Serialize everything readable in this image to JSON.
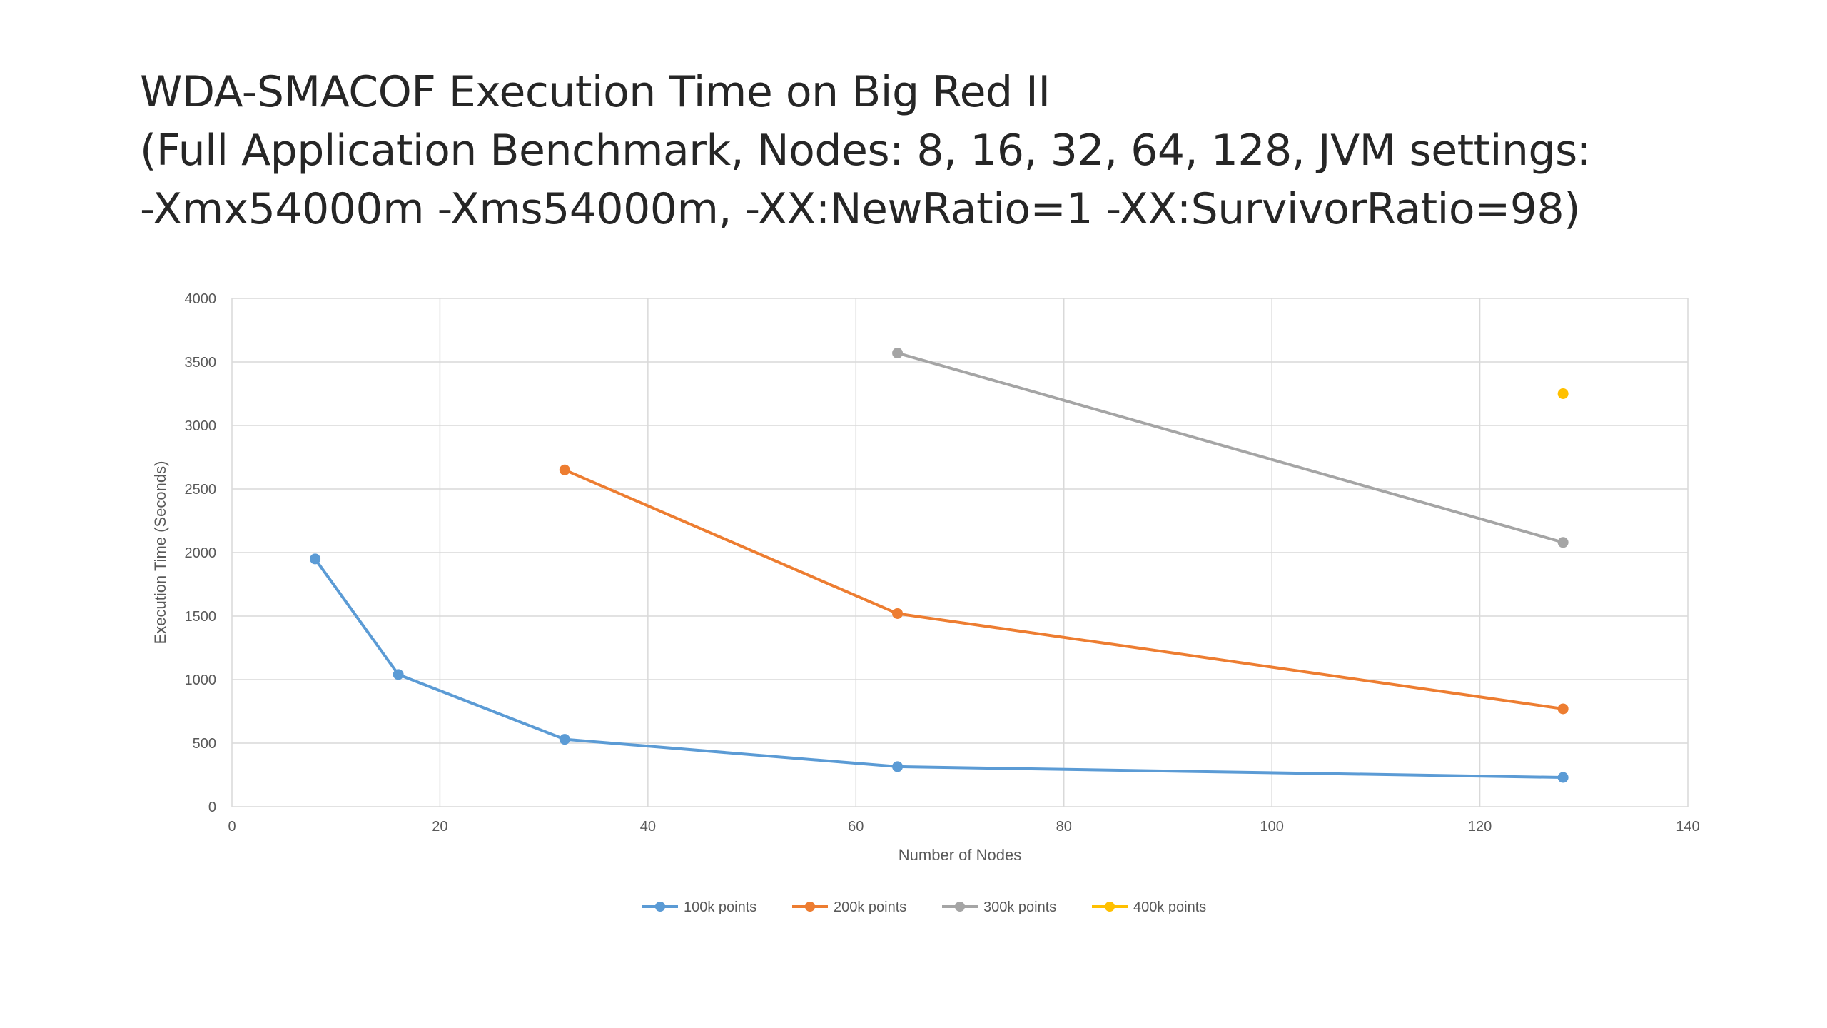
{
  "chart_data": {
    "type": "line",
    "title_lines": [
      "WDA-SMACOF Execution Time on Big Red II",
      "(Full Application Benchmark, Nodes: 8, 16, 32, 64, 128, JVM settings:",
      "-Xmx54000m -Xms54000m, -XX:NewRatio=1 -XX:SurvivorRatio=98)"
    ],
    "xlabel": "Number of Nodes",
    "ylabel": "Execution Time (Seconds)",
    "xlim": [
      0,
      140
    ],
    "ylim": [
      0,
      4000
    ],
    "x_ticks": [
      "0",
      "20",
      "40",
      "60",
      "80",
      "100",
      "120",
      "140"
    ],
    "y_ticks": [
      "0",
      "500",
      "1000",
      "1500",
      "2000",
      "2500",
      "3000",
      "3500",
      "4000"
    ],
    "grid": true,
    "legend_position": "bottom",
    "series": [
      {
        "name": "100k points",
        "color": "#5B9BD5",
        "points": [
          [
            8,
            1950
          ],
          [
            16,
            1040
          ],
          [
            32,
            530
          ],
          [
            64,
            315
          ],
          [
            128,
            230
          ]
        ]
      },
      {
        "name": "200k points",
        "color": "#ED7D31",
        "points": [
          [
            32,
            2650
          ],
          [
            64,
            1520
          ],
          [
            128,
            770
          ]
        ]
      },
      {
        "name": "300k points",
        "color": "#A5A5A5",
        "points": [
          [
            64,
            3570
          ],
          [
            128,
            2080
          ]
        ]
      },
      {
        "name": "400k points",
        "color": "#FFC000",
        "points": [
          [
            128,
            3250
          ]
        ]
      }
    ]
  }
}
